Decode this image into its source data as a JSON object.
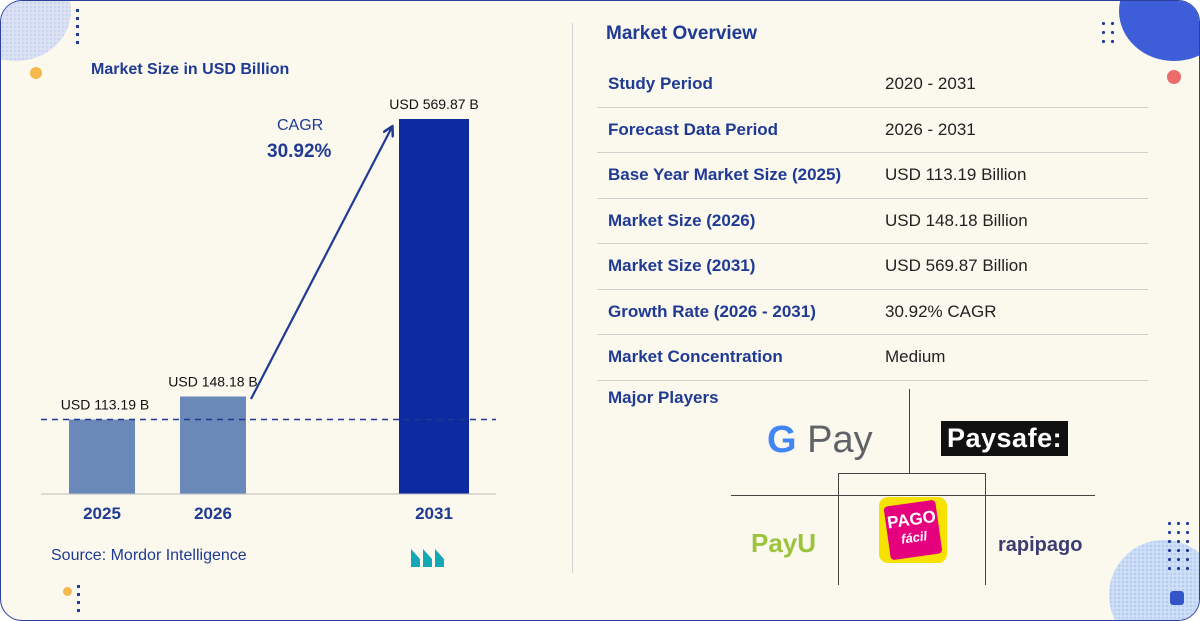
{
  "chart_data": {
    "type": "bar",
    "title": "Market Size in USD Billion",
    "categories": [
      "2025",
      "2026",
      "2031"
    ],
    "values": [
      113.19,
      148.18,
      569.87
    ],
    "data_labels": [
      "USD 113.19 B",
      "USD 148.18 B",
      "USD 569.87 B"
    ],
    "colors": [
      "#6a88b8",
      "#6a88b8",
      "#0e2aa0"
    ],
    "annotation": {
      "label": "CAGR",
      "value": "30.92%"
    },
    "ylim": [
      0,
      600
    ],
    "grid": false,
    "reference_line_at": 113.19
  },
  "source": "Source: Mordor Intelligence",
  "brand_logo": {
    "name": "mordor-intelligence-logo",
    "color": "#13a8b8"
  },
  "overview": {
    "title": "Market Overview",
    "rows": [
      {
        "key": "Study Period",
        "value": "2020 - 2031"
      },
      {
        "key": "Forecast Data Period",
        "value": "2026 - 2031"
      },
      {
        "key": "Base Year Market Size (2025)",
        "value": "USD 113.19 Billion"
      },
      {
        "key": "Market Size (2026)",
        "value": "USD 148.18 Billion"
      },
      {
        "key": "Market Size (2031)",
        "value": "USD 569.87 Billion"
      },
      {
        "key": "Growth Rate (2026 - 2031)",
        "value": "30.92% CAGR"
      },
      {
        "key": "Market Concentration",
        "value": "Medium"
      }
    ],
    "players_label": "Major Players",
    "players": [
      {
        "name": "G Pay",
        "g": "G",
        "rest": " Pay"
      },
      {
        "name": "Paysafe:"
      },
      {
        "name": "PayU"
      },
      {
        "name": "PAGO fácil",
        "line1": "PAGO",
        "line2": "fácil"
      },
      {
        "name": "rapipago"
      }
    ]
  },
  "accent_color": "#1f3a93"
}
